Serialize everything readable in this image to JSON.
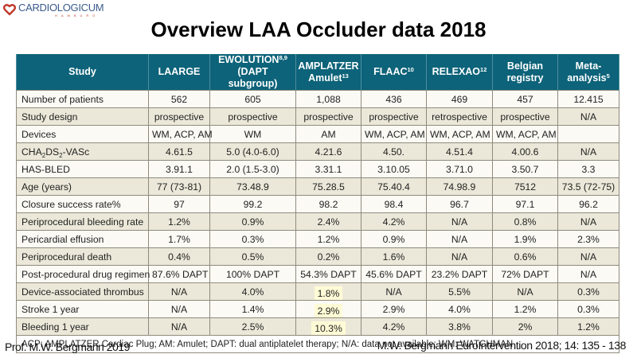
{
  "logo": {
    "name": "CARDIOLOGICUM",
    "sub": "HAMBURG",
    "icon": "heart-logo-icon",
    "color": "#c0392b"
  },
  "title": "Overview LAA Occluder data 2018",
  "table": {
    "header_color": "#0d6379",
    "headers": [
      {
        "main": "Study",
        "sup": "",
        "line2": ""
      },
      {
        "main": "LAARGE",
        "sup": "",
        "line2": ""
      },
      {
        "main": "EWOLUTION",
        "sup": "8,9",
        "line2": "(DAPT subgroup)"
      },
      {
        "main": "AMPLATZER",
        "sup": "",
        "line2": "Amulet",
        "line2_sup": "13"
      },
      {
        "main": "FLAAC",
        "sup": "10",
        "line2": ""
      },
      {
        "main": "RELEXAO",
        "sup": "12",
        "line2": ""
      },
      {
        "main": "Belgian",
        "sup": "",
        "line2": "registry"
      },
      {
        "main": "Meta-",
        "sup": "",
        "line2": "analysis",
        "line2_sup": "5"
      }
    ],
    "rows": [
      {
        "label": "Number of patients",
        "values": [
          "562",
          "605",
          "1,088",
          "436",
          "469",
          "457",
          "12.415"
        ]
      },
      {
        "label": "Study design",
        "values": [
          "prospective",
          "prospective",
          "prospective",
          "prospective",
          "retrospective",
          "prospective",
          "N/A"
        ]
      },
      {
        "label": "Devices",
        "values": [
          "WM, ACP, AM",
          "WM",
          "AM",
          "WM, ACP, AM",
          "WM, ACP, AM",
          "WM, ACP, AM",
          ""
        ]
      },
      {
        "label_parts": [
          "CHA",
          "2",
          "DS",
          "2",
          "-VASc"
        ],
        "values": [
          "4.61.5",
          "5.0 (4.0-6.0)",
          "4.21.6",
          "4.50.",
          "4.51.4",
          "4.00.6",
          "N/A"
        ]
      },
      {
        "label": "HAS-BLED",
        "values": [
          "3.91.1",
          "2.0 (1.5-3.0)",
          "3.31.1",
          "3.10.05",
          "3.71.0",
          "3.50.7",
          "3.3"
        ]
      },
      {
        "label": "Age (years)",
        "values": [
          "77 (73-81)",
          "73.48.9",
          "75.28.5",
          "75.40.4",
          "74.98.9",
          "7512",
          "73.5 (72-75)"
        ]
      },
      {
        "label": "Closure success rate%",
        "values": [
          "97",
          "99.2",
          "98.2",
          "98.4",
          "96.7",
          "97.1",
          "96.2"
        ]
      },
      {
        "label": "Periprocedural bleeding rate",
        "values": [
          "1.2%",
          "0.9%",
          "2.4%",
          "4.2%",
          "N/A",
          "0.8%",
          "N/A"
        ]
      },
      {
        "label": "Pericardial effusion",
        "values": [
          "1.7%",
          "0.3%",
          "1.2%",
          "0.9%",
          "N/A",
          "1.9%",
          "2.3%"
        ]
      },
      {
        "label": "Periprocedural death",
        "values": [
          "0.4%",
          "0.5%",
          "0.2%",
          "1.6%",
          "N/A",
          "0.6%",
          "N/A"
        ]
      },
      {
        "label": "Post-procedural drug regimen",
        "values": [
          "87.6% DAPT",
          "100% DAPT",
          "54.3% DAPT",
          "45.6% DAPT",
          "23.2% DAPT",
          "72% DAPT",
          "N/A"
        ]
      },
      {
        "label": "Device-associated thrombus",
        "values": [
          "N/A",
          "4.0%",
          "1.8%",
          "N/A",
          "5.5%",
          "N/A",
          "0.3%"
        ],
        "highlight_col": 2
      },
      {
        "label": "Stroke 1 year",
        "values": [
          "N/A",
          "1.4%",
          "2.9%",
          "2.9%",
          "4.0%",
          "1.2%",
          "0.3%"
        ],
        "highlight_col": 2
      },
      {
        "label": "Bleeding 1 year",
        "values": [
          "N/A",
          "2.5%",
          "10.3%",
          "4.2%",
          "3.8%",
          "2%",
          "1.2%"
        ],
        "highlight_col": 2
      }
    ],
    "footnote": "ACP: AMPLATZER Cardiac Plug; AM: Amulet; DAPT: dual antiplatelet therapy; N/A: data not available; WM: WATCHMAN"
  },
  "footer": {
    "author": "Prof. M.W. Bergmann 2019",
    "citation": "M.W. Bergmann EuroIntervention 2018; 14: 135 - 138"
  }
}
